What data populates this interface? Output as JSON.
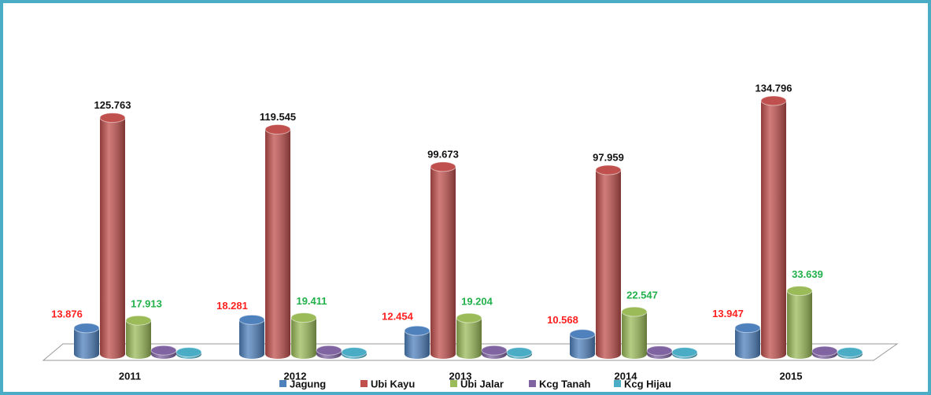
{
  "chart_data": {
    "type": "bar3d",
    "categories": [
      "2011",
      "2012",
      "2013",
      "2014",
      "2015"
    ],
    "series": [
      {
        "name": "Jagung",
        "color": "#4f81bd",
        "label_color": "#ff2020",
        "values": [
          13876,
          18281,
          12454,
          10568,
          13947
        ],
        "value_labels": [
          "13.876",
          "18.281",
          "12.454",
          "10.568",
          "13.947"
        ]
      },
      {
        "name": "Ubi Kayu",
        "color": "#c0504d",
        "label_color": "#111111",
        "values": [
          125763,
          119545,
          99673,
          97959,
          134796
        ],
        "value_labels": [
          "125.763",
          "119.545",
          "99.673",
          "97.959",
          "134.796"
        ]
      },
      {
        "name": "Ubi Jalar",
        "color": "#9bbb59",
        "label_color": "#22b04b",
        "values": [
          17913,
          19411,
          19204,
          22547,
          33639
        ],
        "value_labels": [
          "17.913",
          "19.411",
          "19.204",
          "22.547",
          "33.639"
        ]
      },
      {
        "name": "Kcg Tanah",
        "color": "#8064a2",
        "values": [
          2000,
          2000,
          2000,
          1800,
          1600
        ]
      },
      {
        "name": "Kcg Hijau",
        "color": "#4bacc6",
        "values": [
          1000,
          1000,
          1000,
          1000,
          1000
        ]
      }
    ]
  }
}
